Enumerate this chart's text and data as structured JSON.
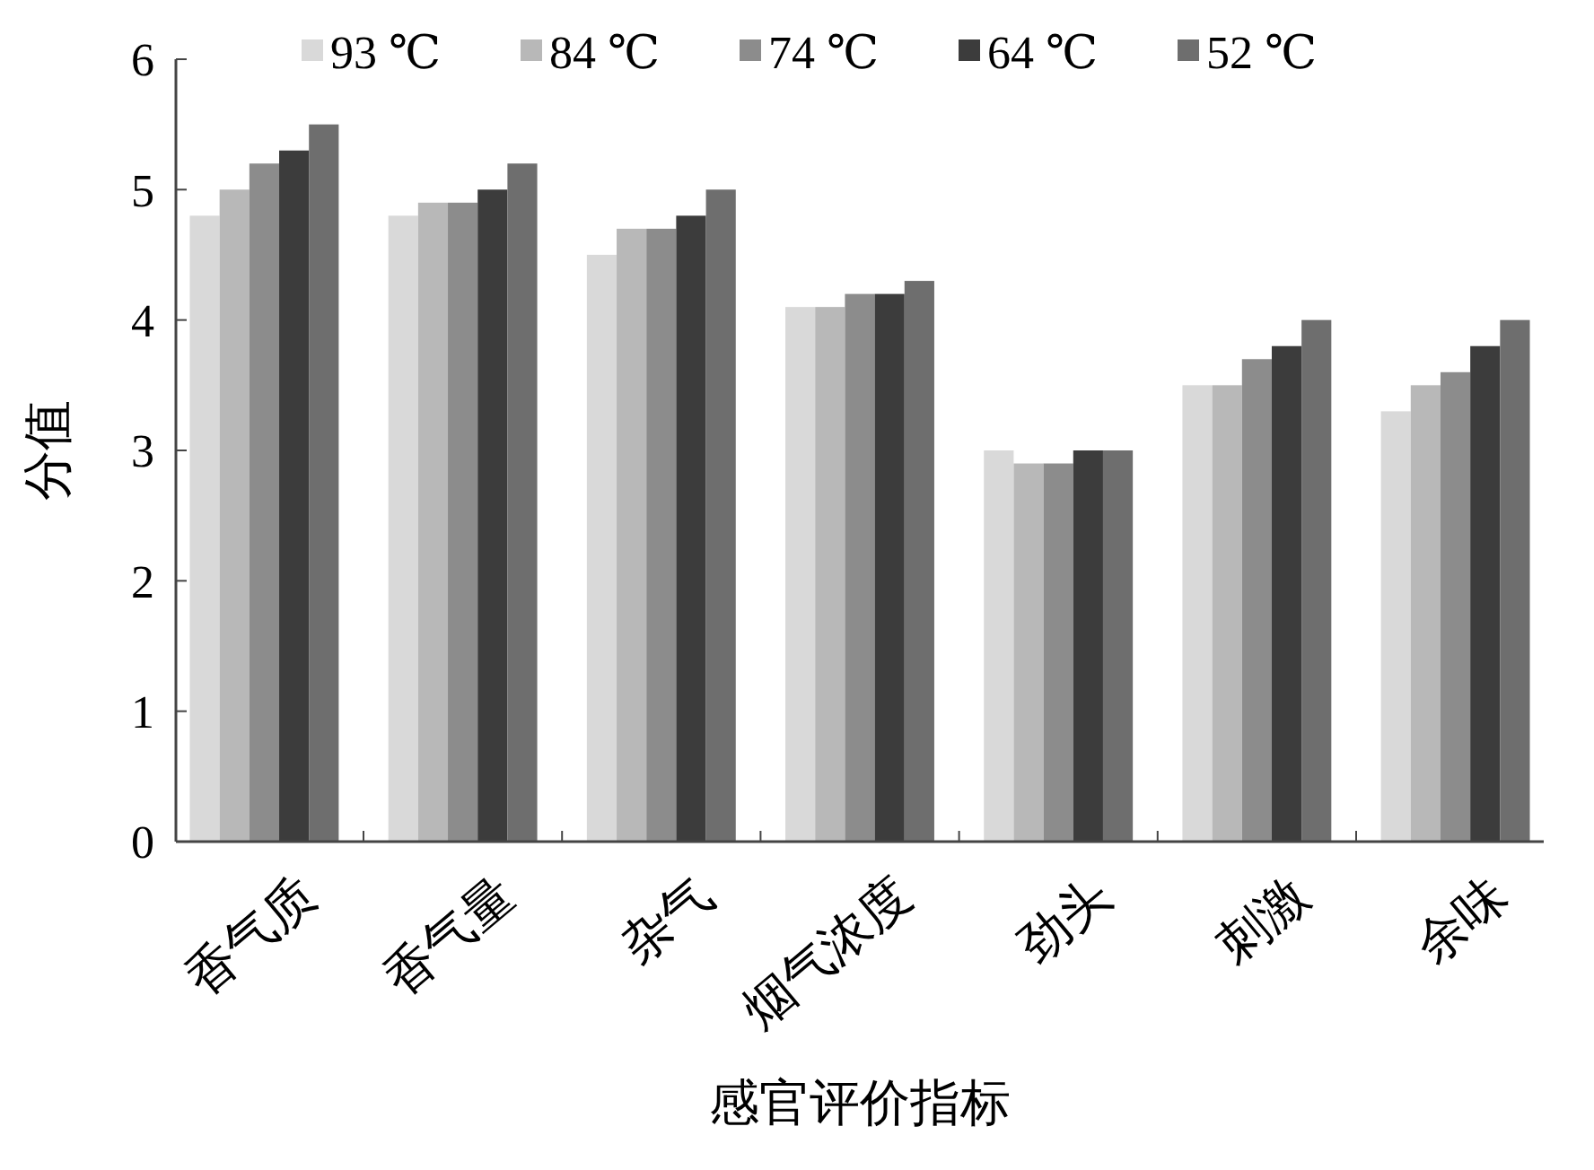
{
  "chart_data": {
    "type": "bar",
    "xlabel": "感官评价指标",
    "ylabel": "分值",
    "categories": [
      "香气质",
      "香气量",
      "杂气",
      "烟气浓度",
      "劲头",
      "刺激",
      "余味"
    ],
    "series": [
      {
        "name": "93 ℃",
        "color": "#d9d9d9",
        "values": [
          4.8,
          4.8,
          4.5,
          4.1,
          3.0,
          3.5,
          3.3
        ]
      },
      {
        "name": "84 ℃",
        "color": "#b8b8b8",
        "values": [
          5.0,
          4.9,
          4.7,
          4.1,
          2.9,
          3.5,
          3.5
        ]
      },
      {
        "name": "74 ℃",
        "color": "#8c8c8c",
        "values": [
          5.2,
          4.9,
          4.7,
          4.2,
          2.9,
          3.7,
          3.6
        ]
      },
      {
        "name": "64 ℃",
        "color": "#3c3c3c",
        "values": [
          5.3,
          5.0,
          4.8,
          4.2,
          3.0,
          3.8,
          3.8
        ]
      },
      {
        "name": "52 ℃",
        "color": "#6e6e6e",
        "values": [
          5.5,
          5.2,
          5.0,
          4.3,
          3.0,
          4.0,
          4.0
        ]
      }
    ],
    "ylim": [
      0,
      6
    ],
    "yticks": [
      0,
      1,
      2,
      3,
      4,
      5,
      6
    ],
    "grid": false,
    "legend": "top"
  }
}
